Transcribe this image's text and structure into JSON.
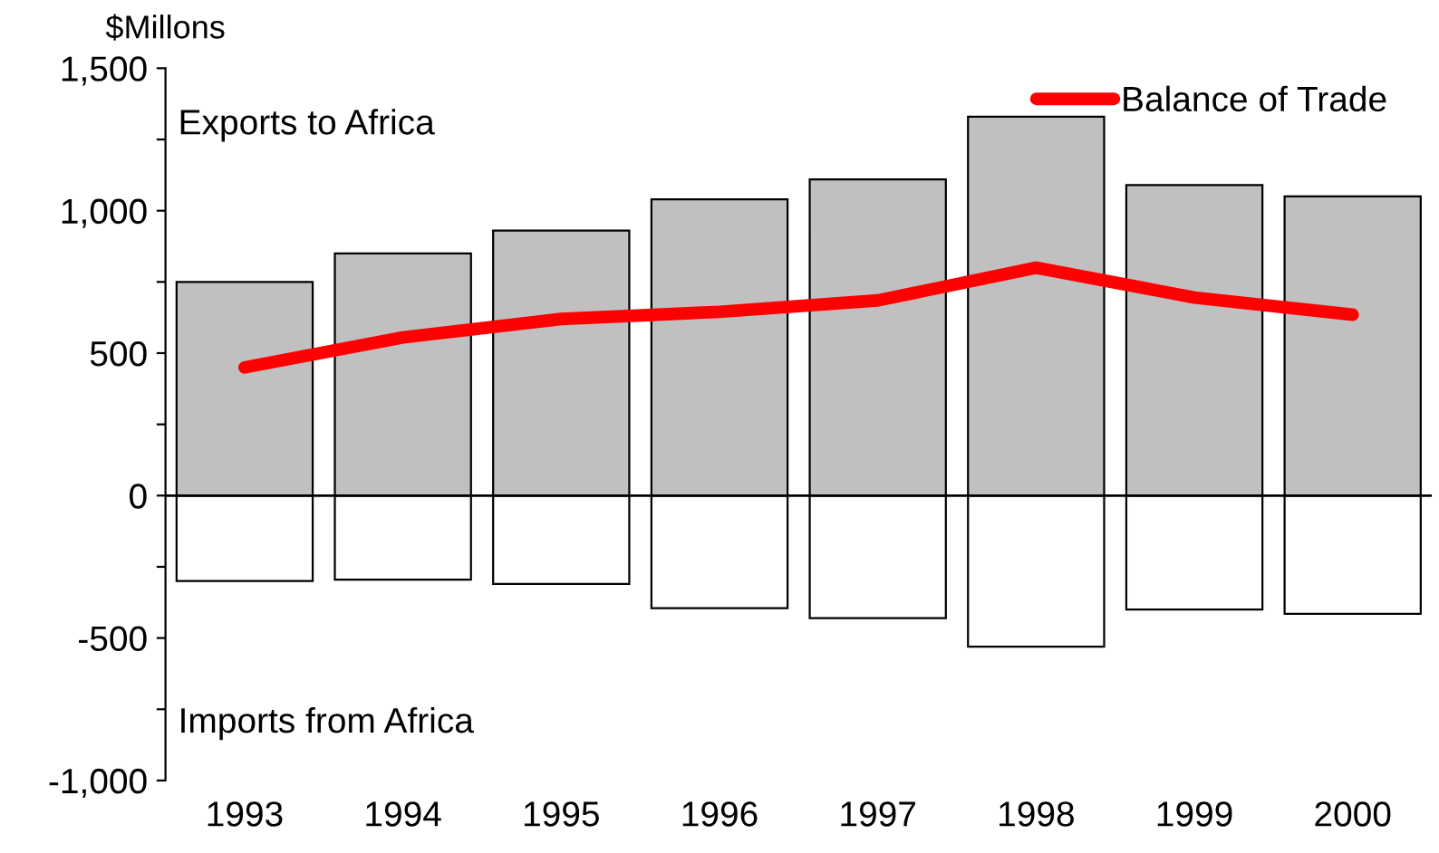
{
  "chart_data": {
    "type": "bar",
    "ylabel": "$Millons",
    "stacked": true,
    "annotations": [
      "Exports to Africa",
      "Imports from Africa"
    ],
    "categories": [
      "1993",
      "1994",
      "1995",
      "1996",
      "1997",
      "1998",
      "1999",
      "2000"
    ],
    "series": [
      {
        "color": "#c0c0c0",
        "values": [
          750,
          850,
          930,
          1040,
          1110,
          1330,
          1090,
          1050
        ]
      },
      {
        "color": "#ffffff",
        "values": [
          -300,
          -295,
          -310,
          -395,
          -430,
          -530,
          -400,
          -415
        ]
      },
      {
        "name": "Balance of Trade",
        "type": "line",
        "color": "#ff0000",
        "values": [
          450,
          555,
          620,
          645,
          685,
          800,
          695,
          635
        ]
      }
    ],
    "ylim": [
      -1000,
      1500
    ],
    "yticks": [
      {
        "value": -1000,
        "label": "-1,000"
      },
      {
        "value": -750,
        "label": null
      },
      -500,
      {
        "value": -250,
        "label": null
      },
      0,
      {
        "value": 250,
        "label": null
      },
      500,
      {
        "value": 750,
        "label": null
      },
      {
        "value": 1000,
        "label": "1,000"
      },
      {
        "value": 1250,
        "label": null
      },
      {
        "value": 1500,
        "label": "1,500"
      }
    ],
    "ref_lines": [
      {
        "axis": "y",
        "value": 0,
        "color": "#000000"
      }
    ],
    "legend": "top right",
    "grid": false,
    "marker": "none",
    "line_style": "solid"
  }
}
